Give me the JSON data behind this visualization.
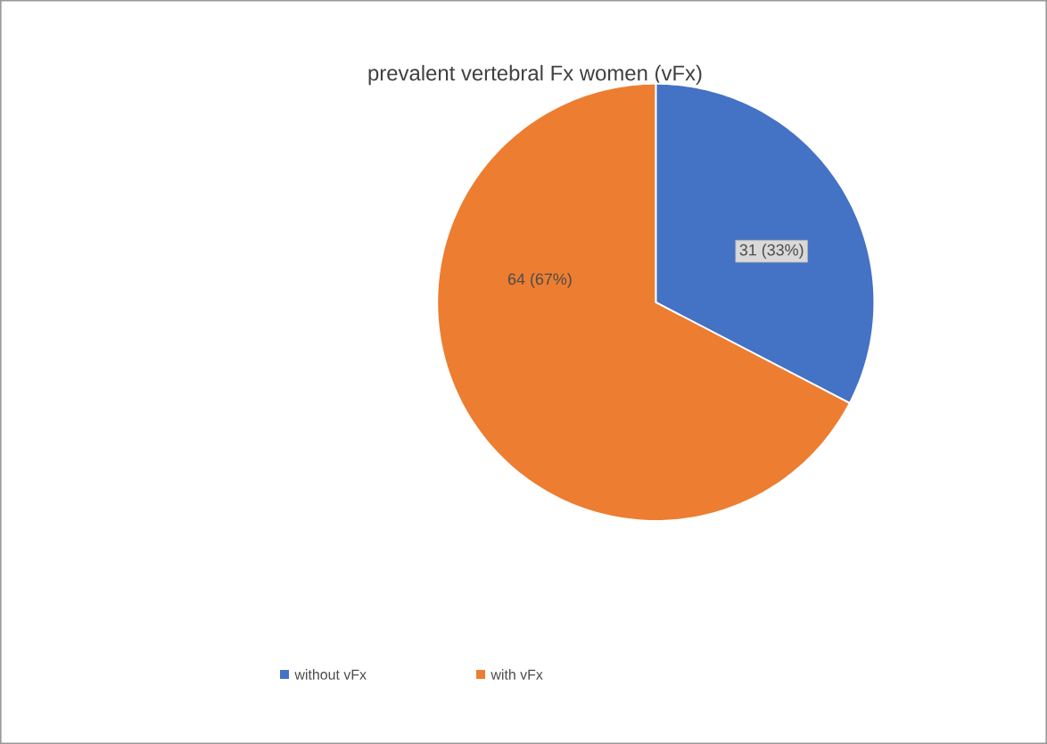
{
  "chart_data": {
    "type": "pie",
    "title": "prevalent vertebral Fx women (vFx)",
    "categories": [
      "without vFx",
      "with vFx"
    ],
    "values": [
      31,
      64
    ],
    "value_labels": [
      "31 (33%)",
      "64 (67%)"
    ],
    "colors": [
      "#4472c4",
      "#ed7d31"
    ],
    "legend": "bottom"
  }
}
